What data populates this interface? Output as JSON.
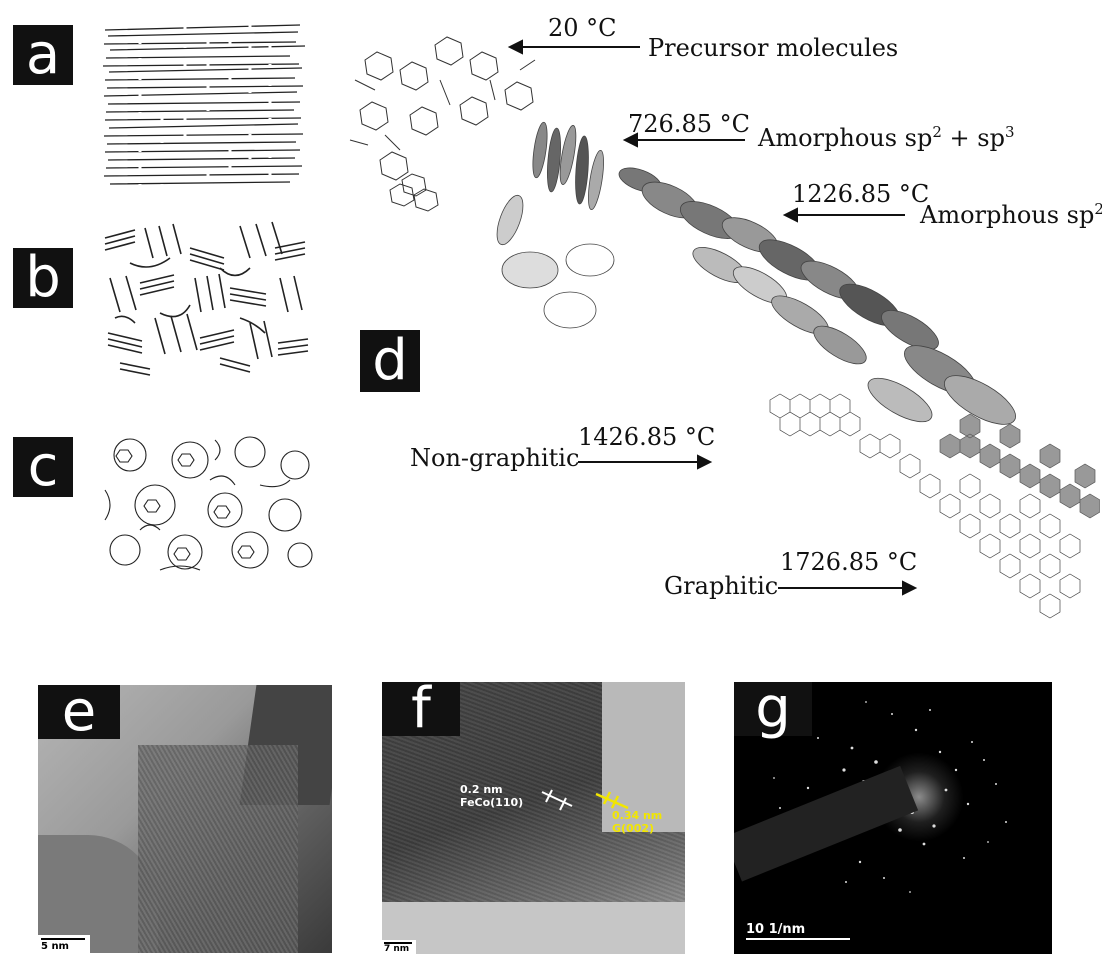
{
  "panels": {
    "a": {
      "label": "a"
    },
    "b": {
      "label": "b"
    },
    "c": {
      "label": "c"
    },
    "d": {
      "label": "d",
      "annotations": {
        "t1": "20 °C",
        "l1": "Precursor molecules",
        "t2": "726.85 °C",
        "l2_main": "Amorphous sp",
        "l2_sup1": "2",
        "l2_mid": " + sp",
        "l2_sup2": "3",
        "t3": "1226.85 °C",
        "l3_main": "Amorphous sp",
        "l3_sup": "2",
        "t4": "1426.85 °C",
        "l4": "Non-graphitic",
        "t5": "1726.85 °C",
        "l5": "Graphitic"
      }
    },
    "e": {
      "label": "e",
      "scale": "5 nm"
    },
    "f": {
      "label": "f",
      "scale": "7 nm",
      "white_line1": "0.2 nm",
      "white_line2": "FeCo(110)",
      "yellow_line1": "0.34 nm",
      "yellow_line2": "G(002)",
      "yellow_color": "#f2e600"
    },
    "g": {
      "label": "g",
      "scale": "10 1/nm"
    }
  },
  "colors": {
    "label_bg": "#111111",
    "label_fg": "#ffffff",
    "tem_dark": "#2a2a2a",
    "tem_mid": "#8a8a8a",
    "tem_light": "#c9c9c9"
  }
}
